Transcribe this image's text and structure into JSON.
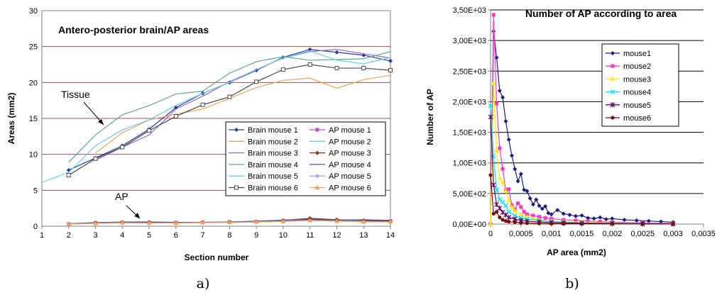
{
  "chart_data": [
    {
      "type": "line",
      "title": "Antero-posterior brain/AP areas",
      "xlabel": "Section number",
      "ylabel": "Areas (mm2)",
      "xlim": [
        1,
        14
      ],
      "ylim": [
        0,
        30
      ],
      "x_ticks": [
        "1",
        "2",
        "3",
        "4",
        "5",
        "6",
        "7",
        "8",
        "9",
        "10",
        "11",
        "12",
        "13",
        "14"
      ],
      "y_ticks": [
        "0",
        "5",
        "10",
        "15",
        "20",
        "25",
        "30"
      ],
      "grid": true,
      "legend_position": "bottom-right",
      "annotations": [
        "Tissue",
        "AP"
      ],
      "caption": "a)",
      "series": [
        {
          "name": "Brain mouse 1",
          "color": "#1f3fa8",
          "marker": "diamond",
          "x": [
            2,
            3,
            4,
            5,
            6,
            7,
            8,
            9,
            10,
            11,
            12,
            13,
            14
          ],
          "y": [
            7.8,
            9.5,
            11.2,
            13.5,
            16.5,
            18.5,
            20.0,
            21.7,
            23.5,
            24.6,
            24.2,
            23.8,
            23.0
          ]
        },
        {
          "name": "Brain mouse 2",
          "color": "#f0a050",
          "marker": "none",
          "x": [
            3,
            4,
            5,
            6,
            7,
            8,
            9,
            10,
            11,
            12,
            13,
            14
          ],
          "y": [
            10.2,
            13.0,
            14.8,
            15.6,
            16.3,
            17.8,
            19.3,
            20.3,
            20.6,
            19.2,
            20.4,
            21.0
          ]
        },
        {
          "name": "Brain mouse 3",
          "color": "#9966cc",
          "marker": "none",
          "x": [
            3,
            4,
            5,
            6,
            7,
            8,
            9,
            10,
            11,
            12,
            13,
            14
          ],
          "y": [
            9.2,
            11.0,
            12.7,
            16.3,
            18.1,
            20.1,
            21.8,
            23.4,
            24.3,
            24.6,
            24.0,
            23.4
          ]
        },
        {
          "name": "Brain mouse 4",
          "color": "#5aaa90",
          "marker": "none",
          "x": [
            2,
            3,
            4,
            5,
            6,
            7,
            8,
            9,
            10,
            11,
            12,
            13,
            14
          ],
          "y": [
            8.9,
            12.7,
            15.5,
            16.8,
            18.4,
            18.8,
            21.3,
            22.9,
            23.6,
            23.1,
            23.2,
            23.3,
            24.3
          ]
        },
        {
          "name": "Brain mouse 5",
          "color": "#66ccee",
          "marker": "none",
          "x": [
            1,
            2,
            3,
            4,
            5,
            6,
            7,
            8,
            9,
            10,
            11,
            12,
            13,
            14
          ],
          "y": [
            6.1,
            7.5,
            11.2,
            13.4,
            14.8,
            16.8,
            18.5,
            20.0,
            21.8,
            23.4,
            24.4,
            23.1,
            22.6,
            23.5
          ]
        },
        {
          "name": "Brain mouse 6",
          "color": "#4a4a4a",
          "marker": "square-open",
          "x": [
            2,
            3,
            4,
            5,
            6,
            7,
            8,
            9,
            10,
            11,
            12,
            13,
            14
          ],
          "y": [
            7.1,
            9.4,
            11.0,
            13.3,
            15.3,
            16.9,
            18.0,
            20.1,
            21.8,
            22.5,
            22.0,
            22.0,
            21.7
          ]
        },
        {
          "name": "AP mouse 1",
          "color": "#cc44cc",
          "marker": "square",
          "x": [
            2,
            3,
            4,
            5,
            6,
            7,
            8,
            9,
            10,
            11,
            12,
            13,
            14
          ],
          "y": [
            0.3,
            0.45,
            0.5,
            0.5,
            0.5,
            0.55,
            0.6,
            0.65,
            0.75,
            0.9,
            0.8,
            0.7,
            0.7
          ]
        },
        {
          "name": "AP mouse 2",
          "color": "#66ccee",
          "marker": "none",
          "x": [
            2,
            3,
            4,
            5,
            6,
            7,
            8,
            9,
            10,
            11,
            12,
            13,
            14
          ],
          "y": [
            0.3,
            0.4,
            0.45,
            0.5,
            0.5,
            0.5,
            0.55,
            0.6,
            0.7,
            0.8,
            0.75,
            0.7,
            0.65
          ]
        },
        {
          "name": "AP mouse 3",
          "color": "#8b2a1a",
          "marker": "diamond",
          "x": [
            2,
            3,
            4,
            5,
            6,
            7,
            8,
            9,
            10,
            11,
            12,
            13,
            14
          ],
          "y": [
            0.3,
            0.5,
            0.55,
            0.55,
            0.5,
            0.5,
            0.55,
            0.6,
            0.8,
            1.1,
            0.9,
            0.8,
            0.7
          ]
        },
        {
          "name": "AP mouse 4",
          "color": "#4455aa",
          "marker": "none",
          "x": [
            2,
            3,
            4,
            5,
            6,
            7,
            8,
            9,
            10,
            11,
            12,
            13,
            14
          ],
          "y": [
            0.35,
            0.5,
            0.6,
            0.6,
            0.55,
            0.55,
            0.6,
            0.7,
            0.85,
            0.95,
            0.85,
            0.9,
            0.8
          ]
        },
        {
          "name": "AP mouse 5",
          "color": "#bb99dd",
          "marker": "diamond",
          "x": [
            2,
            3,
            4,
            5,
            6,
            7,
            8,
            9,
            10,
            11,
            12,
            13,
            14
          ],
          "y": [
            0.3,
            0.4,
            0.45,
            0.45,
            0.45,
            0.5,
            0.5,
            0.6,
            0.7,
            0.8,
            0.7,
            0.65,
            0.6
          ]
        },
        {
          "name": "AP mouse 6",
          "color": "#f0a050",
          "marker": "triangle",
          "x": [
            2,
            3,
            4,
            5,
            6,
            7,
            8,
            9,
            10,
            11,
            12,
            13,
            14
          ],
          "y": [
            0.3,
            0.4,
            0.5,
            0.45,
            0.45,
            0.5,
            0.55,
            0.6,
            0.65,
            0.8,
            0.7,
            0.6,
            0.6
          ]
        }
      ]
    },
    {
      "type": "line",
      "title": "Number of AP according to area",
      "xlabel": "AP area (mm2)",
      "ylabel": "Number of AP",
      "xlim": [
        0,
        0.0035
      ],
      "ylim": [
        0,
        3500
      ],
      "x_ticks": [
        "0",
        "0,0005",
        "0,001",
        "0,0015",
        "0,002",
        "0,0025",
        "0,003",
        "0,0035"
      ],
      "y_ticks": [
        "0,00E+00",
        "5,00E+02",
        "1,00E+03",
        "1,50E+03",
        "2,00E+03",
        "2,50E+03",
        "3,00E+03",
        "3,50E+03"
      ],
      "grid": true,
      "legend_position": "top-right",
      "caption": "b)",
      "series": [
        {
          "name": "mouse1",
          "color": "#1a1a8c",
          "marker": "diamond",
          "x": [
            0,
            5e-05,
            0.0001,
            0.00015,
            0.0002,
            0.00025,
            0.0003,
            0.00035,
            0.0004,
            0.00045,
            0.0005,
            0.00055,
            0.0006,
            0.00065,
            0.0007,
            0.00075,
            0.0008,
            0.00085,
            0.0009,
            0.00095,
            0.001,
            0.0011,
            0.0012,
            0.0013,
            0.0014,
            0.0015,
            0.0016,
            0.0017,
            0.0018,
            0.0019,
            0.002,
            0.0022,
            0.0024,
            0.0026,
            0.0028,
            0.003
          ],
          "y": [
            0,
            3150,
            2720,
            2180,
            2070,
            1680,
            1380,
            1120,
            900,
            700,
            820,
            560,
            540,
            420,
            320,
            400,
            300,
            250,
            290,
            180,
            160,
            230,
            170,
            150,
            130,
            140,
            100,
            90,
            110,
            80,
            90,
            70,
            60,
            50,
            40,
            30
          ]
        },
        {
          "name": "mouse2",
          "color": "#ff33cc",
          "marker": "square",
          "x": [
            0,
            5e-05,
            0.0001,
            0.00015,
            0.0002,
            0.00025,
            0.0003,
            0.00035,
            0.0004,
            0.00045,
            0.0005,
            0.00055,
            0.0006,
            0.0007,
            0.0008,
            0.0009,
            0.001,
            0.0012,
            0.0014,
            0.0016,
            0.0018,
            0.002,
            0.0025,
            0.003
          ],
          "y": [
            0,
            3420,
            1970,
            1240,
            900,
            560,
            570,
            310,
            240,
            340,
            280,
            200,
            160,
            140,
            120,
            100,
            90,
            70,
            60,
            50,
            40,
            30,
            20,
            10
          ]
        },
        {
          "name": "mouse3",
          "color": "#ffee00",
          "marker": "triangle",
          "x": [
            0,
            5e-05,
            0.0001,
            0.00015,
            0.0002,
            0.00025,
            0.0003,
            0.00035,
            0.0004,
            0.0005,
            0.0006,
            0.0007,
            0.0008,
            0.001,
            0.0012,
            0.0015,
            0.002,
            0.0025,
            0.003
          ],
          "y": [
            0,
            2300,
            1200,
            750,
            680,
            540,
            380,
            280,
            220,
            160,
            120,
            90,
            70,
            50,
            40,
            30,
            20,
            10,
            5
          ]
        },
        {
          "name": "mouse4",
          "color": "#00e5ee",
          "marker": "x",
          "x": [
            0,
            5e-05,
            0.0001,
            0.00015,
            0.0002,
            0.00025,
            0.0003,
            0.0004,
            0.0005,
            0.0006,
            0.0008,
            0.001,
            0.0012,
            0.0015,
            0.002,
            0.0025,
            0.003
          ],
          "y": [
            1930,
            1110,
            560,
            400,
            360,
            300,
            200,
            140,
            100,
            80,
            60,
            40,
            30,
            20,
            15,
            10,
            5
          ]
        },
        {
          "name": "mouse5",
          "color": "#660066",
          "marker": "star",
          "x": [
            0,
            5e-05,
            0.0001,
            0.00015,
            0.0002,
            0.00025,
            0.0003,
            0.0004,
            0.0005,
            0.0006,
            0.0008,
            0.001,
            0.0012,
            0.0015,
            0.002,
            0.0025,
            0.003
          ],
          "y": [
            1750,
            640,
            320,
            260,
            190,
            150,
            110,
            80,
            60,
            45,
            35,
            25,
            20,
            15,
            10,
            5,
            5
          ]
        },
        {
          "name": "mouse6",
          "color": "#7a0a0a",
          "marker": "circle",
          "x": [
            0,
            5e-05,
            0.0001,
            0.00015,
            0.0002,
            0.00025,
            0.0003,
            0.0004,
            0.0005,
            0.0006,
            0.0008,
            0.001,
            0.0012,
            0.0015,
            0.002,
            0.0025,
            0.003
          ],
          "y": [
            800,
            170,
            200,
            110,
            70,
            50,
            40,
            30,
            20,
            15,
            10,
            8,
            6,
            5,
            4,
            3,
            2
          ]
        }
      ]
    }
  ]
}
